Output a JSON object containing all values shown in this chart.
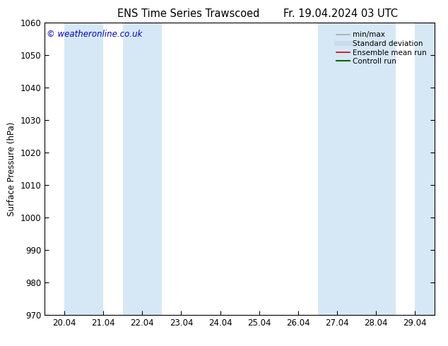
{
  "title_left": "ENS Time Series Trawscoed",
  "title_right": "Fr. 19.04.2024 03 UTC",
  "ylabel": "Surface Pressure (hPa)",
  "ylim": [
    970,
    1060
  ],
  "yticks": [
    970,
    980,
    990,
    1000,
    1010,
    1020,
    1030,
    1040,
    1050,
    1060
  ],
  "x_tick_labels": [
    "20.04",
    "21.04",
    "22.04",
    "23.04",
    "24.04",
    "25.04",
    "26.04",
    "27.04",
    "28.04",
    "29.04"
  ],
  "x_tick_positions": [
    0,
    1,
    2,
    3,
    4,
    5,
    6,
    7,
    8,
    9
  ],
  "xlim": [
    -0.5,
    9.5
  ],
  "shaded_bands": [
    {
      "x_start": 0.0,
      "x_end": 1.0
    },
    {
      "x_start": 1.5,
      "x_end": 2.5
    },
    {
      "x_start": 6.5,
      "x_end": 7.5
    },
    {
      "x_start": 7.5,
      "x_end": 8.5
    },
    {
      "x_start": 9.0,
      "x_end": 9.5
    }
  ],
  "shade_color": "#d6e8f5",
  "background_color": "#ffffff",
  "watermark": "© weatheronline.co.uk",
  "watermark_color": "#0000cc",
  "legend_items": [
    {
      "label": "min/max",
      "color": "#aaaaaa",
      "lw": 1.2
    },
    {
      "label": "Standard deviation",
      "color": "#c8dced",
      "lw": 5
    },
    {
      "label": "Ensemble mean run",
      "color": "#dd0000",
      "lw": 1.2
    },
    {
      "label": "Controll run",
      "color": "#006600",
      "lw": 1.5
    }
  ],
  "title_fontsize": 10.5,
  "tick_fontsize": 8.5,
  "ylabel_fontsize": 8.5,
  "watermark_fontsize": 8.5,
  "legend_fontsize": 7.5
}
